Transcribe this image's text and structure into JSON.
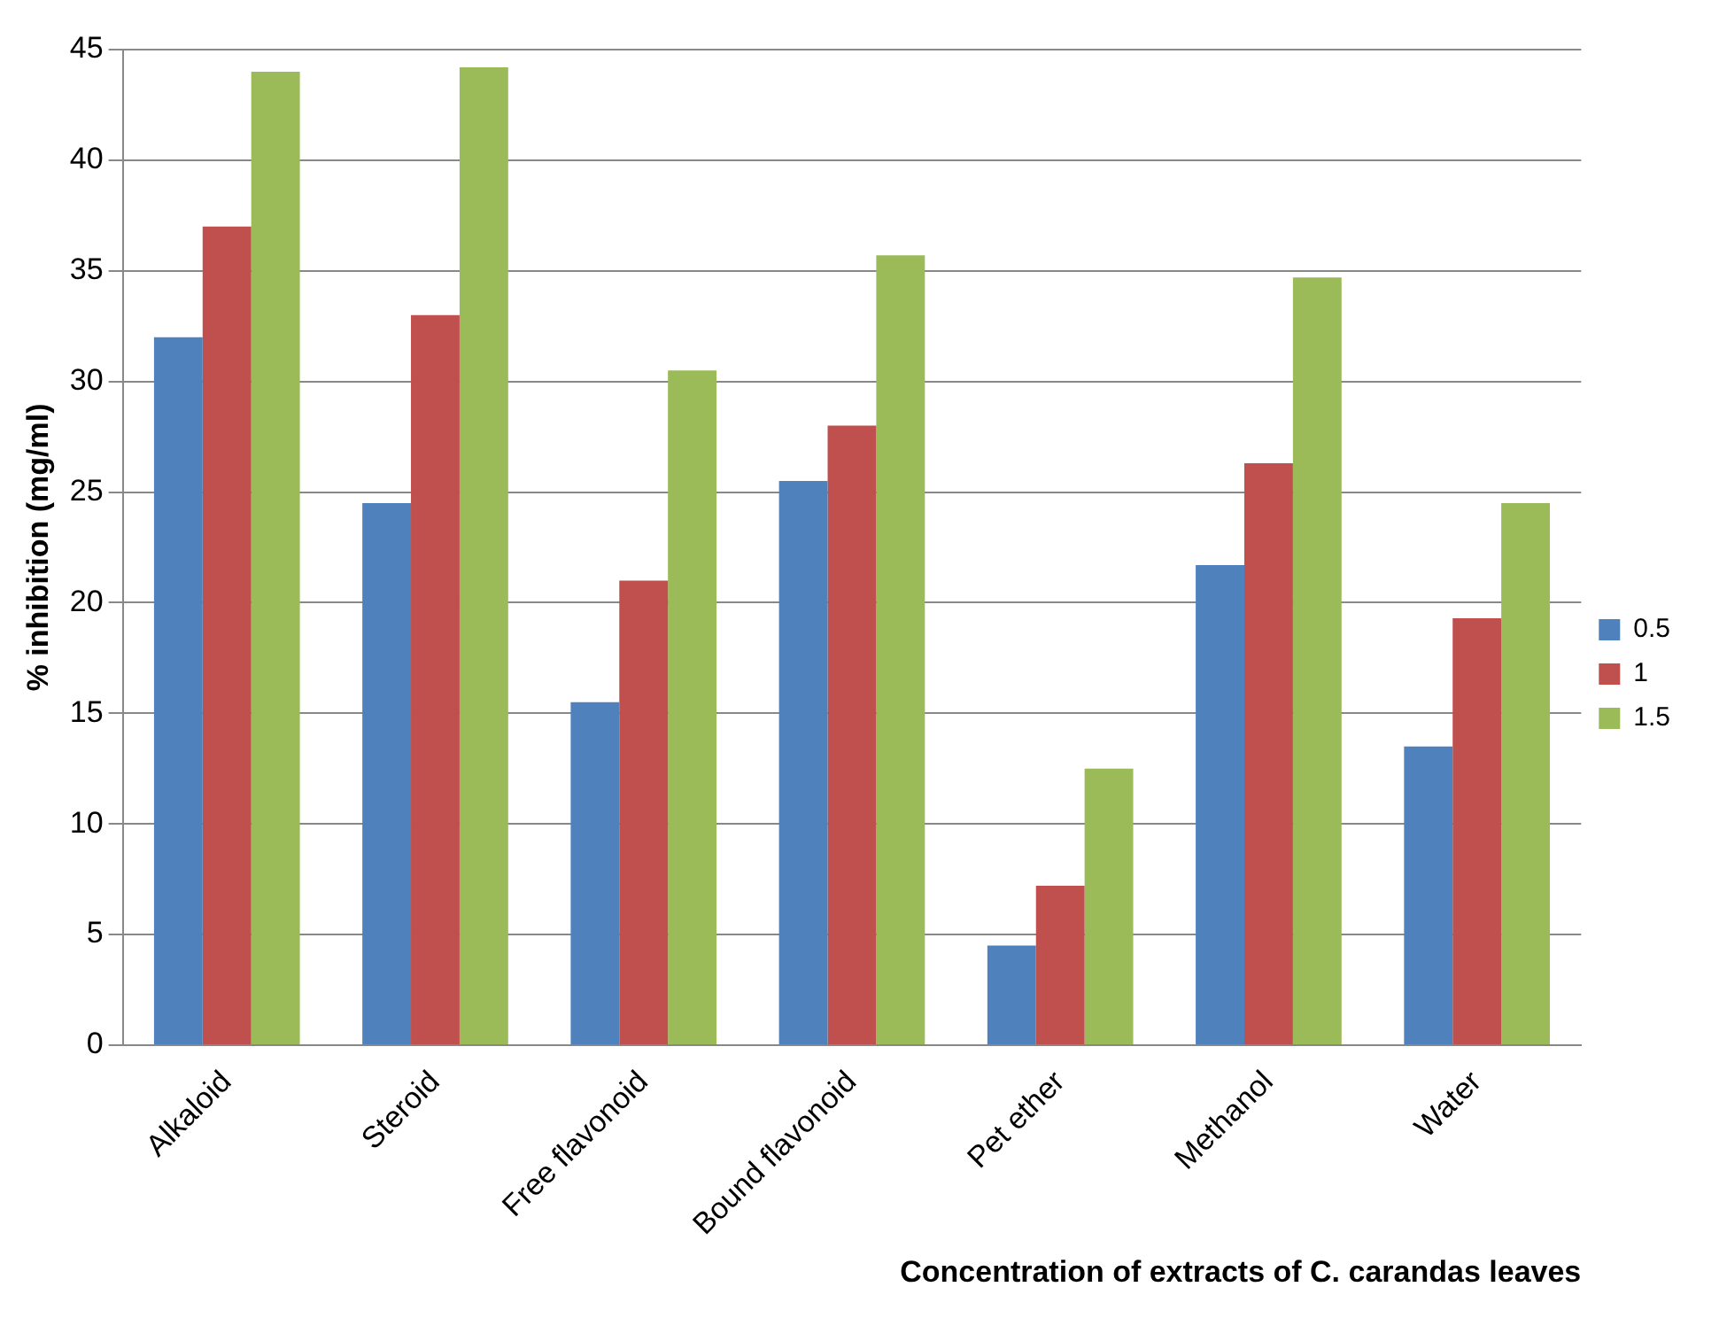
{
  "chart_data": {
    "type": "bar",
    "xlabel": "Concentration of extracts of C. carandas leaves",
    "ylabel": "% inhibition (mg/ml)",
    "categories": [
      "Alkaloid",
      "Steroid",
      "Free flavonoid",
      "Bound flavonoid",
      "Pet ether",
      "Methanol",
      "Water"
    ],
    "series": [
      {
        "name": "0.5",
        "color": "#4f81bd",
        "values": [
          32,
          24.5,
          15.5,
          25.5,
          4.5,
          21.7,
          13.5
        ]
      },
      {
        "name": "1",
        "color": "#c0504d",
        "values": [
          37,
          33,
          21,
          28,
          7.2,
          26.3,
          19.3
        ]
      },
      {
        "name": "1.5",
        "color": "#9bbb59",
        "values": [
          44,
          44.2,
          30.5,
          35.7,
          12.5,
          34.7,
          24.5
        ]
      }
    ],
    "ylim": [
      0,
      45
    ],
    "yticks": [
      0,
      5,
      10,
      15,
      20,
      25,
      30,
      35,
      40,
      45
    ],
    "grid": "y",
    "legend": "right"
  }
}
